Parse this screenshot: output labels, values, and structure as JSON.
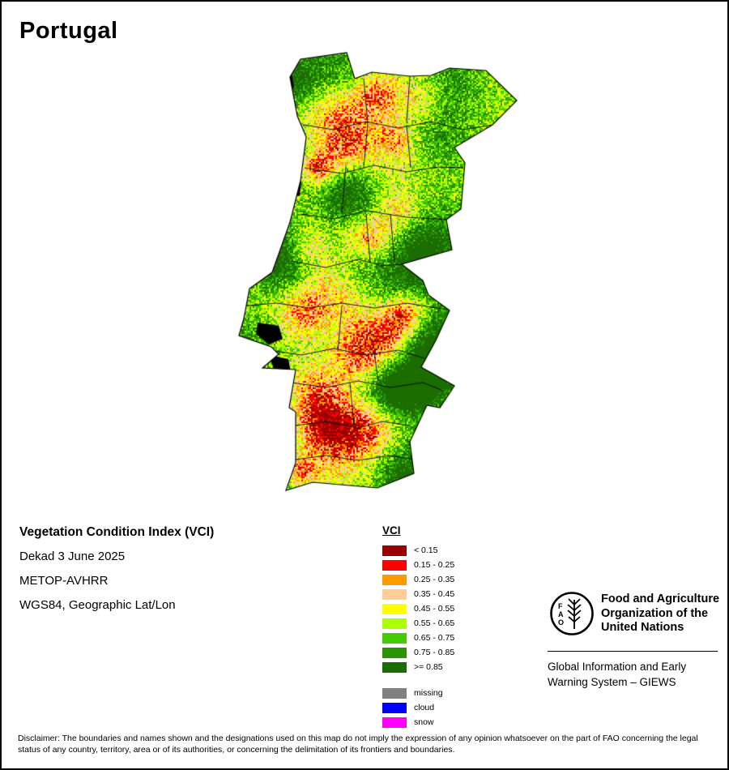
{
  "page": {
    "title": "Portugal"
  },
  "info": {
    "product": "Vegetation Condition Index (VCI)",
    "dekad": "Dekad 3 June 2025",
    "sensor": "METOP-AVHRR",
    "projection": "WGS84, Geographic Lat/Lon"
  },
  "legend": {
    "title": "VCI",
    "classes": [
      {
        "label": "< 0.15",
        "color": "#990000"
      },
      {
        "label": "0.15 - 0.25",
        "color": "#ff0000"
      },
      {
        "label": "0.25 - 0.35",
        "color": "#ff9900"
      },
      {
        "label": "0.35 - 0.45",
        "color": "#ffcc99"
      },
      {
        "label": "0.45 - 0.55",
        "color": "#ffff00"
      },
      {
        "label": "0.55 - 0.65",
        "color": "#aaff00"
      },
      {
        "label": "0.65 - 0.75",
        "color": "#44cc00"
      },
      {
        "label": "0.75 - 0.85",
        "color": "#2a9500"
      },
      {
        "label": ">= 0.85",
        "color": "#1b6d00"
      }
    ],
    "extras": [
      {
        "label": "missing",
        "color": "#808080"
      },
      {
        "label": "cloud",
        "color": "#0000ff"
      },
      {
        "label": "snow",
        "color": "#ff00ff"
      }
    ]
  },
  "footer": {
    "fao_name": "Food and Agriculture Organization of the United Nations",
    "giews": "Global Information and Early Warning System – GIEWS",
    "disclaimer": "Disclaimer: The boundaries and names shown and the designations used on this map do not imply the expression of any opinion whatsoever on the part of FAO concerning the legal status of any country, territory, area or of its authorities, or concerning the delimitation of its frontiers and boundaries."
  }
}
